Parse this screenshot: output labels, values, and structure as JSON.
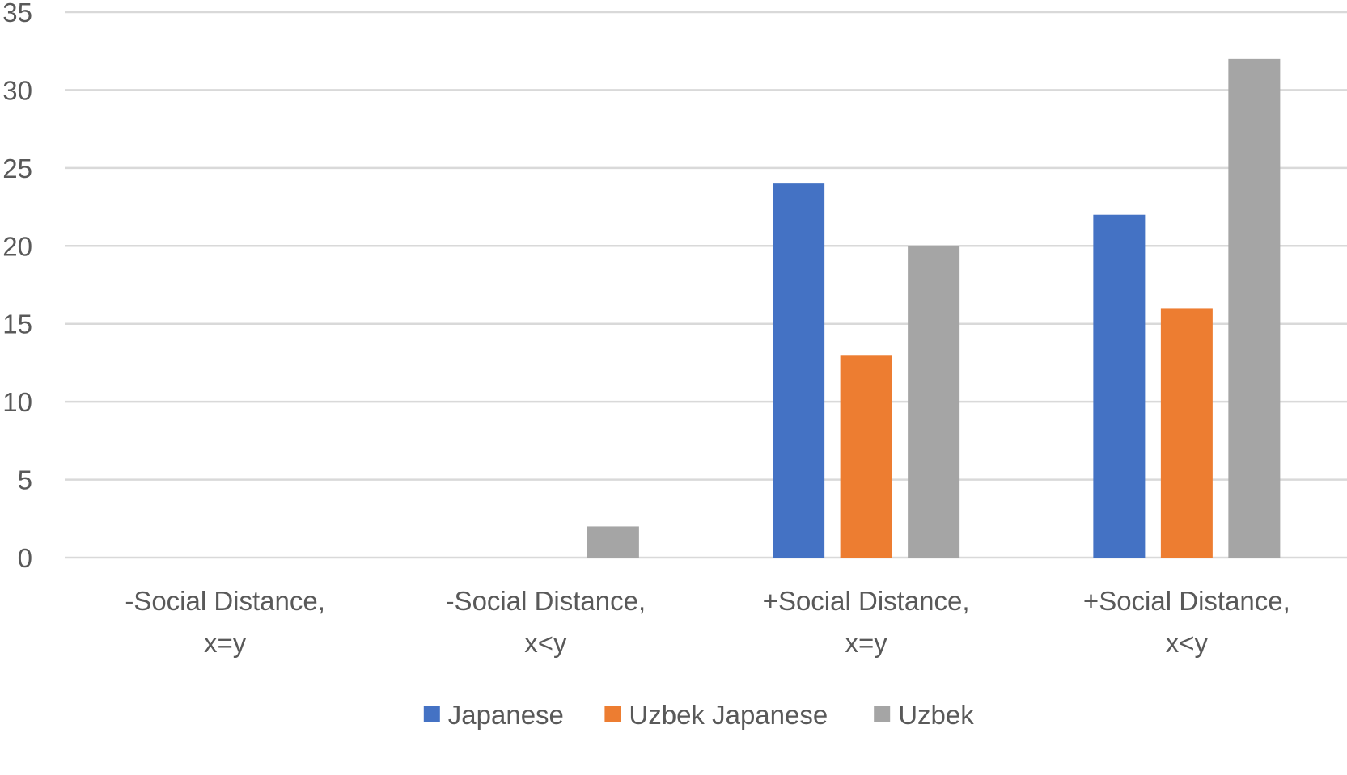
{
  "chart_data": {
    "type": "bar",
    "title": "",
    "xlabel": "",
    "ylabel": "",
    "categories": [
      [
        "-Social Distance,",
        "x=y"
      ],
      [
        "-Social Distance,",
        "x<y"
      ],
      [
        "+Social Distance,",
        "x=y"
      ],
      [
        "+Social Distance,",
        "x<y"
      ]
    ],
    "series": [
      {
        "name": "Japanese",
        "color": "#4472c4",
        "values": [
          0,
          0,
          24,
          22
        ]
      },
      {
        "name": "Uzbek Japanese",
        "color": "#ed7d31",
        "values": [
          0,
          0,
          13,
          16
        ]
      },
      {
        "name": "Uzbek",
        "color": "#a5a5a5",
        "values": [
          0,
          2,
          20,
          32
        ]
      }
    ],
    "ylim": [
      0,
      35
    ],
    "yticks": [
      0,
      5,
      10,
      15,
      20,
      25,
      30,
      35
    ],
    "grid": true,
    "legend_position": "bottom"
  }
}
